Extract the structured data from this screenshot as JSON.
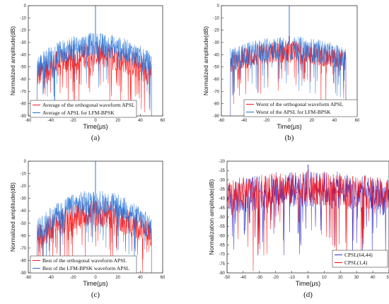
{
  "colors": {
    "red": "#ff1a1a",
    "blue": "#1f6fd6",
    "red_d": "#ff0000",
    "blue_d": "#3030d0"
  },
  "chart_data": [
    {
      "id": "a",
      "type": "line",
      "caption": "(a)",
      "ylabel": "Normalized amplitude(dB)",
      "xlabel": "Time(μs)",
      "xlim": [
        -60,
        60
      ],
      "ylim": [
        -90,
        0
      ],
      "xticks": [
        -60,
        -40,
        -20,
        0,
        20,
        40,
        60
      ],
      "yticks": [
        0,
        -10,
        -20,
        -30,
        -40,
        -50,
        -60,
        -70,
        -80,
        -90
      ],
      "grid": false,
      "legend": "bottom-left",
      "series": [
        {
          "name": "Average of the orthogonal waveform APSL",
          "color": "red",
          "span": [
            -52,
            50
          ],
          "level_center": -38,
          "level_edge": -55,
          "spread": 11,
          "peak": -30
        },
        {
          "name": "Average of APSL for LFM-BPSK",
          "color": "blue",
          "span": [
            -52,
            50
          ],
          "level_center": -30,
          "level_edge": -48,
          "spread": 10,
          "peak": 0
        }
      ]
    },
    {
      "id": "b",
      "type": "line",
      "caption": "(b)",
      "ylabel": "Normalized amplitude(dB)",
      "xlabel": "Time(μs)",
      "xlim": [
        -60,
        60
      ],
      "ylim": [
        -90,
        0
      ],
      "xticks": [
        -60,
        -40,
        -20,
        0,
        20,
        40,
        60
      ],
      "yticks": [
        0,
        -10,
        -20,
        -30,
        -40,
        -50,
        -60,
        -70,
        -80,
        -90
      ],
      "grid": false,
      "legend": "bottom-center",
      "series": [
        {
          "name": "Worst  of the orthogonal waveform APSL",
          "color": "red",
          "span": [
            -52,
            50
          ],
          "level_center": -36,
          "level_edge": -45,
          "spread": 9,
          "peak": -25
        },
        {
          "name": "Worst of the APSL for LFM-BPSK",
          "color": "blue",
          "span": [
            -52,
            50
          ],
          "level_center": -33,
          "level_edge": -43,
          "spread": 10,
          "peak": 0
        }
      ]
    },
    {
      "id": "c",
      "type": "line",
      "caption": "(c)",
      "ylabel": "Normalized amplitude(dB)",
      "xlabel": "Time(μs)",
      "xlim": [
        -60,
        60
      ],
      "ylim": [
        -90,
        0
      ],
      "xticks": [
        -60,
        -40,
        -20,
        0,
        20,
        40,
        60
      ],
      "yticks": [
        0,
        -10,
        -20,
        -30,
        -40,
        -50,
        -60,
        -70,
        -80,
        -90
      ],
      "grid": false,
      "legend": "bottom-center",
      "series": [
        {
          "name": "Best of  the orthogonal waveform APSL",
          "color": "red",
          "span": [
            -52,
            50
          ],
          "level_center": -40,
          "level_edge": -60,
          "spread": 11,
          "peak": -32
        },
        {
          "name": "Best of the LFM-BPSK waveform APSL",
          "color": "blue",
          "span": [
            -52,
            50
          ],
          "level_center": -31,
          "level_edge": -55,
          "spread": 10,
          "peak": 0
        }
      ]
    },
    {
      "id": "d",
      "type": "line",
      "caption": "(d)",
      "ylabel": "Normalization amplitude(dB)",
      "xlabel": "Time(μs)",
      "xlim": [
        -50,
        50
      ],
      "ylim": [
        -80,
        -20
      ],
      "xticks": [
        -50,
        -40,
        -30,
        -20,
        -10,
        0,
        10,
        20,
        30,
        40,
        50
      ],
      "yticks": [
        -20,
        -25,
        -30,
        -35,
        -40,
        -45,
        -50,
        -55,
        -60,
        -65,
        -70,
        -75,
        -80
      ],
      "grid": false,
      "legend": "bottom-right",
      "series": [
        {
          "name": "CPSL(64,44)",
          "color": "blue_d",
          "span": [
            -50,
            50
          ],
          "level_center": -33,
          "level_edge": -38,
          "spread": 10,
          "peak": -22
        },
        {
          "name": "CPSL(1,4)",
          "color": "red_d",
          "span": [
            -50,
            50
          ],
          "level_center": -33,
          "level_edge": -37,
          "spread": 9,
          "peak": -25
        }
      ]
    }
  ]
}
